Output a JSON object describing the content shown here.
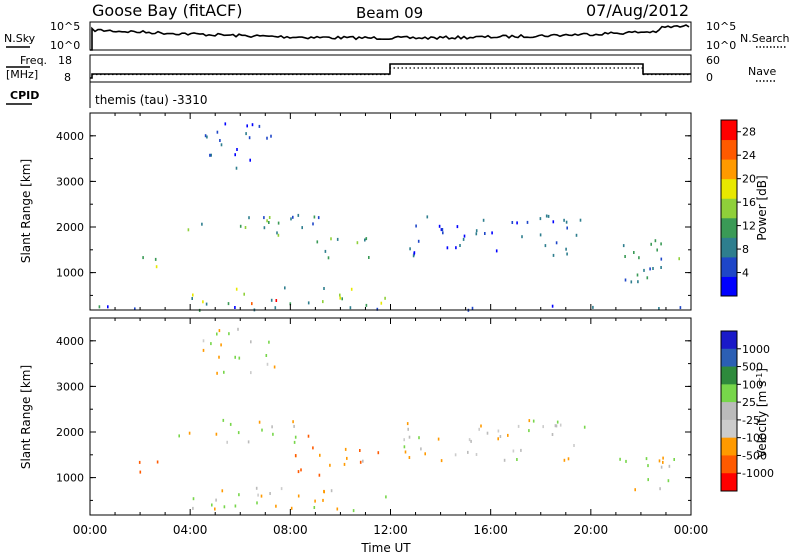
{
  "header": {
    "station": "Goose Bay (fitACF)",
    "beam": "Beam 09",
    "date": "07/Aug/2012"
  },
  "panels": {
    "nsky_label": "N.Sky",
    "nsky_ticks": [
      "10^5",
      "10^0"
    ],
    "nsearch_label": "N.Search",
    "nsearch_ticks": [
      "10^5",
      "10^0"
    ],
    "freq_label_1": "Freq.",
    "freq_label_2": "[MHz]",
    "freq_ticks": [
      "18",
      "8"
    ],
    "nave_label": "Nave",
    "nave_ticks": [
      "60",
      "0"
    ],
    "cpid_label": "CPID",
    "cpid_value": "themis (tau) -3310"
  },
  "colors": {
    "power": [
      "#0000ff",
      "#1e46c8",
      "#2e7e8e",
      "#3a9a56",
      "#8fd03a",
      "#e8e800",
      "#ff9a00",
      "#ff5a00",
      "#ff0000"
    ],
    "velocity": [
      "#ff0000",
      "#ff5a00",
      "#ff9a00",
      "#cccccc",
      "#bbbbbb",
      "#77d64a",
      "#2e8a3c",
      "#2b5fb4",
      "#1a1ac8"
    ]
  },
  "chart_data": [
    {
      "type": "heatmap",
      "title": "",
      "xlabel": "Time UT",
      "ylabel": "Slant Range [km]",
      "xlim": [
        0,
        24
      ],
      "ylim": [
        180,
        4500
      ],
      "x_ticks": [
        "00:00",
        "04:00",
        "08:00",
        "12:00",
        "16:00",
        "20:00",
        "00:00"
      ],
      "y_ticks": [
        "1000",
        "2000",
        "3000",
        "4000"
      ],
      "colorbar_label": "Power [dB]",
      "colorbar_ticks": [
        "4",
        "8",
        "12",
        "16",
        "20",
        "24",
        "28"
      ],
      "colorbar_range": [
        0,
        30
      ],
      "regions": [
        {
          "t0": 4.0,
          "t1": 11.8,
          "r0": 300,
          "r1": 700,
          "level": 14
        },
        {
          "t0": 5.0,
          "t1": 7.5,
          "r0": 300,
          "r1": 450,
          "level": 26
        },
        {
          "t0": 3.5,
          "t1": 8.5,
          "r0": 1800,
          "r1": 2300,
          "level": 10
        },
        {
          "t0": 9.0,
          "t1": 11.8,
          "r0": 1300,
          "r1": 1800,
          "level": 12
        },
        {
          "t0": 8.0,
          "t1": 9.5,
          "r0": 2000,
          "r1": 2400,
          "level": 8
        },
        {
          "t0": 1.8,
          "t1": 3.0,
          "r0": 1000,
          "r1": 1400,
          "level": 16
        },
        {
          "t0": 12.5,
          "t1": 20.0,
          "r0": 1400,
          "r1": 2300,
          "level": 5
        },
        {
          "t0": 21.0,
          "t1": 23.8,
          "r0": 700,
          "r1": 1800,
          "level": 10
        },
        {
          "t0": 4.5,
          "t1": 7.5,
          "r0": 3300,
          "r1": 4300,
          "level": 4
        },
        {
          "t0": 0.0,
          "t1": 24.0,
          "r0": 200,
          "r1": 300,
          "level": 6
        }
      ]
    },
    {
      "type": "heatmap",
      "title": "",
      "xlabel": "Time UT",
      "ylabel": "Slant Range [km]",
      "xlim": [
        0,
        24
      ],
      "ylim": [
        180,
        4500
      ],
      "x_ticks": [
        "00:00",
        "04:00",
        "08:00",
        "12:00",
        "16:00",
        "20:00",
        "00:00"
      ],
      "y_ticks": [
        "1000",
        "2000",
        "3000",
        "4000"
      ],
      "colorbar_label": "Velocity [m s^-1]",
      "colorbar_ticks": [
        "1000",
        "500",
        "100",
        "25",
        "-25",
        "-100",
        "-500",
        "-1000"
      ],
      "regions": [
        {
          "t0": 4.0,
          "t1": 11.8,
          "r0": 300,
          "r1": 800,
          "velocity": 0
        },
        {
          "t0": 4.0,
          "t1": 7.0,
          "r0": 350,
          "r1": 500,
          "velocity": 80
        },
        {
          "t0": 3.5,
          "t1": 8.5,
          "r0": 1800,
          "r1": 2300,
          "velocity": 0
        },
        {
          "t0": 9.0,
          "t1": 11.8,
          "r0": 1300,
          "r1": 1800,
          "velocity": -60
        },
        {
          "t0": 8.0,
          "t1": 9.2,
          "r0": 1000,
          "r1": 2000,
          "velocity": -150
        },
        {
          "t0": 1.8,
          "t1": 3.0,
          "r0": 1000,
          "r1": 1400,
          "velocity": -400
        },
        {
          "t0": 12.5,
          "t1": 20.0,
          "r0": 1400,
          "r1": 2300,
          "velocity": 0
        },
        {
          "t0": 21.0,
          "t1": 23.8,
          "r0": 700,
          "r1": 1500,
          "velocity": 10
        },
        {
          "t0": 4.5,
          "t1": 7.5,
          "r0": 3300,
          "r1": 4300,
          "velocity": 0
        }
      ]
    }
  ]
}
